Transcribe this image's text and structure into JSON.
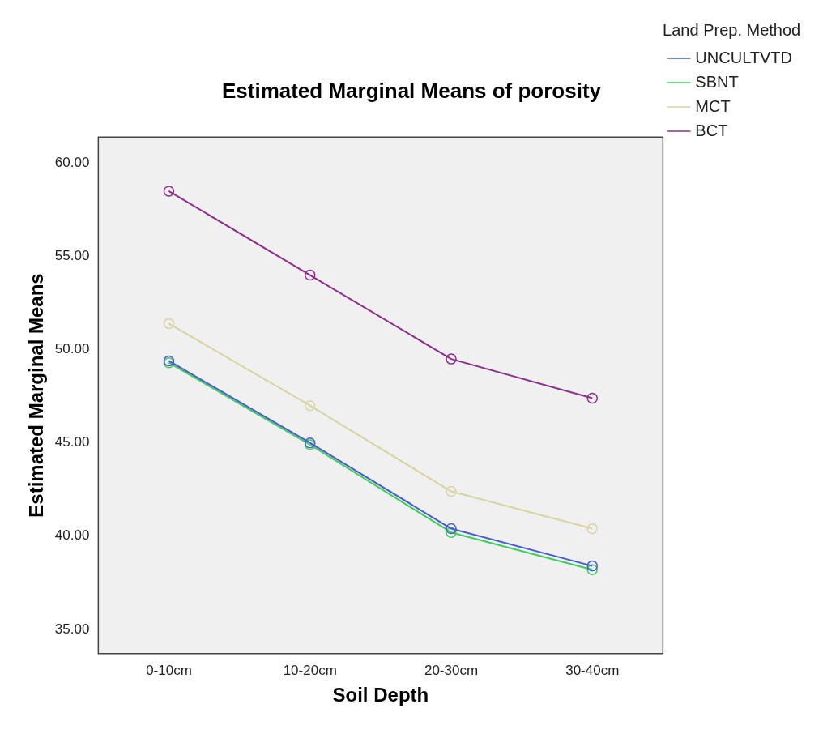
{
  "chart_data": {
    "type": "line",
    "title": "Estimated Marginal Means of porosity",
    "xlabel": "Soil Depth",
    "ylabel": "Estimated Marginal Means",
    "legend_title": "Land Prep. Method",
    "categories": [
      "0-10cm",
      "10-20cm",
      "20-30cm",
      "30-40cm"
    ],
    "series": [
      {
        "name": "UNCULTVTD",
        "color": "#4a5bd0",
        "values": [
          49.4,
          45.0,
          40.4,
          38.4
        ]
      },
      {
        "name": "SBNT",
        "color": "#3ccf5a",
        "values": [
          49.3,
          44.9,
          40.2,
          38.2
        ]
      },
      {
        "name": "MCT",
        "color": "#d8d4a0",
        "values": [
          51.4,
          47.0,
          42.4,
          40.4
        ]
      },
      {
        "name": "BCT",
        "color": "#8e2d8c",
        "values": [
          58.5,
          54.0,
          49.5,
          47.4
        ]
      }
    ],
    "ylim": [
      33.7,
      61.4
    ],
    "yticks": [
      {
        "value": 35,
        "label": "35.00"
      },
      {
        "value": 40,
        "label": "40.00"
      },
      {
        "value": 45,
        "label": "45.00"
      },
      {
        "value": 50,
        "label": "50.00"
      },
      {
        "value": 55,
        "label": "55.00"
      },
      {
        "value": 60,
        "label": "60.00"
      }
    ],
    "grid": false,
    "legend": "right",
    "marker": "circle",
    "line_style": "solid"
  }
}
